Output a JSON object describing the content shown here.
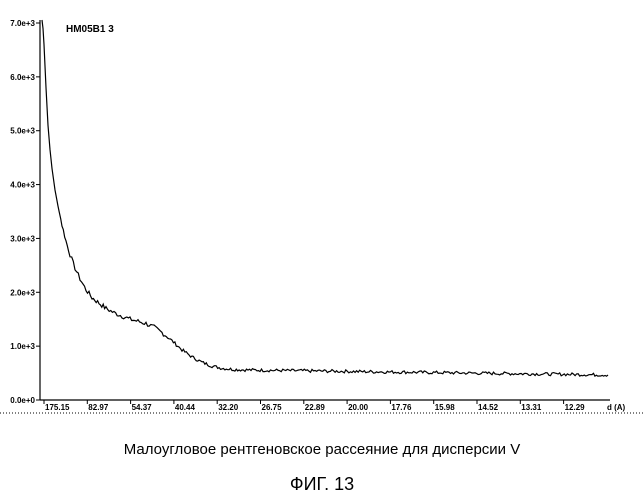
{
  "caption": "Малоугловое рентгеновское рассеяние для дисперсии V",
  "figure_label": "ФИГ. 13",
  "chart_data": {
    "type": "line",
    "title": "HM05B1 3",
    "xlabel": "d (A)",
    "ylabel": "",
    "ylim": [
      0,
      7000
    ],
    "grid": false,
    "yticks": [
      {
        "value": 0,
        "label": "0.0e+0"
      },
      {
        "value": 1000,
        "label": "1.0e+3"
      },
      {
        "value": 2000,
        "label": "2.0e+3"
      },
      {
        "value": 3000,
        "label": "3.0e+3"
      },
      {
        "value": 4000,
        "label": "4.0e+3"
      },
      {
        "value": 5000,
        "label": "5.0e+3"
      },
      {
        "value": 6000,
        "label": "6.0e+3"
      },
      {
        "value": 7000,
        "label": "7.0e+3"
      }
    ],
    "xtick_labels": [
      "175.15",
      "82.97",
      "54.37",
      "40.44",
      "32.20",
      "26.75",
      "22.89",
      "20.00",
      "17.76",
      "15.98",
      "14.52",
      "13.31",
      "12.29"
    ],
    "series": [
      {
        "x": [
          0,
          1,
          2,
          3,
          4,
          5,
          6,
          8,
          10,
          13,
          16,
          20,
          24,
          28,
          33,
          38,
          44,
          50,
          57,
          64,
          72,
          80,
          88,
          96,
          104,
          112,
          120,
          130,
          140,
          150,
          160,
          170,
          180,
          190,
          200,
          215,
          230,
          250,
          270,
          290,
          310,
          330,
          350,
          370,
          390,
          410,
          430,
          450,
          470,
          490,
          510,
          530,
          550,
          566
        ],
        "y": [
          7200,
          6900,
          6600,
          6200,
          5800,
          5450,
          5100,
          4650,
          4300,
          3900,
          3600,
          3250,
          2950,
          2700,
          2450,
          2250,
          2050,
          1900,
          1800,
          1700,
          1620,
          1560,
          1500,
          1460,
          1420,
          1350,
          1250,
          1100,
          930,
          800,
          700,
          630,
          590,
          570,
          560,
          555,
          550,
          545,
          540,
          535,
          530,
          525,
          520,
          515,
          510,
          505,
          500,
          495,
          490,
          485,
          480,
          475,
          470,
          465
        ]
      }
    ]
  }
}
